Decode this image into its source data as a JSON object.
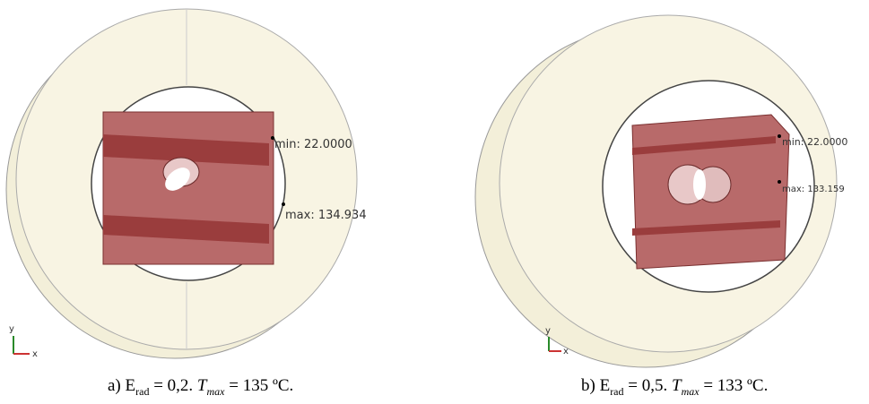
{
  "panels": [
    {
      "min_label": "min: 22.0000",
      "max_label": "max: 134.934",
      "axis_y": "y",
      "axis_x": "x",
      "caption": {
        "prefix": "a) E",
        "prefix_sub": "rad",
        "middle": " = 0,2. ",
        "symbol": "T",
        "symbol_sub": "max",
        "suffix": " = 135 ºC."
      }
    },
    {
      "min_label": "min: 22.0000",
      "max_label": "max: 133.159",
      "axis_y": "y",
      "axis_x": "x",
      "caption": {
        "prefix": "b) E",
        "prefix_sub": "rad",
        "middle": " = 0,5. ",
        "symbol": "T",
        "symbol_sub": "max",
        "suffix": " = 133 ºC."
      }
    }
  ]
}
